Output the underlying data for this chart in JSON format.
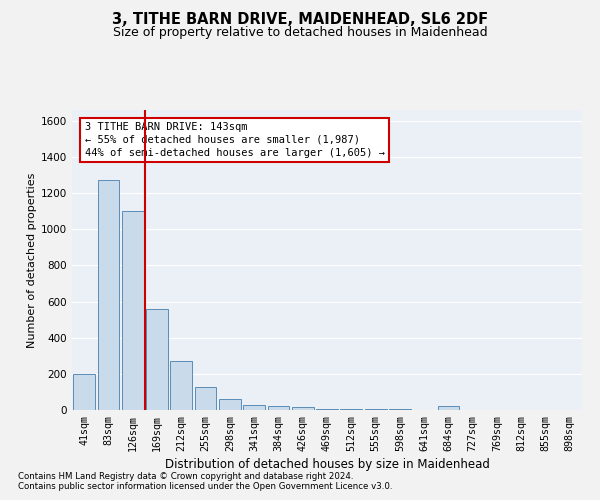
{
  "title1": "3, TITHE BARN DRIVE, MAIDENHEAD, SL6 2DF",
  "title2": "Size of property relative to detached houses in Maidenhead",
  "xlabel": "Distribution of detached houses by size in Maidenhead",
  "ylabel": "Number of detached properties",
  "categories": [
    "41sqm",
    "83sqm",
    "126sqm",
    "169sqm",
    "212sqm",
    "255sqm",
    "298sqm",
    "341sqm",
    "384sqm",
    "426sqm",
    "469sqm",
    "512sqm",
    "555sqm",
    "598sqm",
    "641sqm",
    "684sqm",
    "727sqm",
    "769sqm",
    "812sqm",
    "855sqm",
    "898sqm"
  ],
  "values": [
    198,
    1270,
    1100,
    560,
    270,
    125,
    60,
    30,
    20,
    15,
    5,
    5,
    5,
    5,
    0,
    20,
    0,
    0,
    0,
    0,
    0
  ],
  "bar_color": "#c9daea",
  "bar_edge_color": "#5b8db8",
  "red_line_x": 2.5,
  "annotation_line1": "3 TITHE BARN DRIVE: 143sqm",
  "annotation_line2": "← 55% of detached houses are smaller (1,987)",
  "annotation_line3": "44% of semi-detached houses are larger (1,605) →",
  "footnote1": "Contains HM Land Registry data © Crown copyright and database right 2024.",
  "footnote2": "Contains public sector information licensed under the Open Government Licence v3.0.",
  "ylim": [
    0,
    1660
  ],
  "yticks": [
    0,
    200,
    400,
    600,
    800,
    1000,
    1200,
    1400,
    1600
  ],
  "bg_color": "#eaf0f6",
  "grid_color": "#ffffff",
  "fig_bg": "#f2f2f2"
}
